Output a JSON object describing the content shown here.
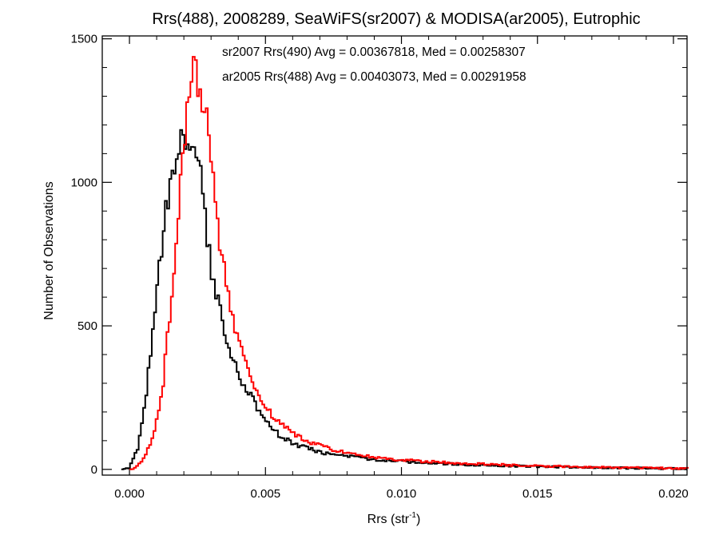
{
  "chart_data": {
    "type": "line",
    "title": "Rrs(488), 2008289, SeaWiFS(sr2007) & MODISA(ar2005), Eutrophic",
    "xlabel": {
      "base": "Rrs (str",
      "sup": "-1",
      "close": ")"
    },
    "ylabel": "Number of Observations",
    "xlim": [
      -0.001,
      0.0205
    ],
    "ylim": [
      -20,
      1510
    ],
    "x_ticks": [
      0.0,
      0.005,
      0.01,
      0.015,
      0.02
    ],
    "x_tick_labels": [
      "0.000",
      "0.005",
      "0.010",
      "0.015",
      "0.020"
    ],
    "y_ticks": [
      0,
      500,
      1000,
      1500
    ],
    "y_tick_labels": [
      "0",
      "500",
      "1000",
      "1500"
    ],
    "step_style": "histogram",
    "series": [
      {
        "name": "sr2007 Rrs(490)",
        "color": "#000000",
        "annotation": "sr2007 Rrs(490) Avg = 0.00367818, Med = 0.00258307",
        "x": [
          -0.0003,
          0.0,
          0.0003,
          0.0006,
          0.0009,
          0.0012,
          0.0015,
          0.0018,
          0.002,
          0.0022,
          0.0024,
          0.0026,
          0.0028,
          0.003,
          0.0033,
          0.0036,
          0.004,
          0.0045,
          0.005,
          0.0055,
          0.006,
          0.0065,
          0.007,
          0.008,
          0.009,
          0.01,
          0.011,
          0.012,
          0.014,
          0.016,
          0.018,
          0.02,
          0.0205
        ],
        "y": [
          0,
          5,
          70,
          250,
          520,
          800,
          1000,
          1120,
          1150,
          1130,
          1100,
          1020,
          870,
          700,
          560,
          430,
          330,
          250,
          170,
          120,
          90,
          75,
          60,
          45,
          35,
          28,
          22,
          18,
          12,
          8,
          5,
          3,
          2
        ]
      },
      {
        "name": "ar2005 Rrs(488)",
        "color": "#ff0000",
        "annotation": "ar2005 Rrs(488) Avg = 0.00403073, Med = 0.00291958",
        "x": [
          0.0,
          0.0003,
          0.0006,
          0.0009,
          0.0012,
          0.0015,
          0.0018,
          0.002,
          0.0022,
          0.0023,
          0.0025,
          0.0027,
          0.0029,
          0.0031,
          0.0033,
          0.0036,
          0.004,
          0.0045,
          0.005,
          0.0055,
          0.006,
          0.0065,
          0.007,
          0.008,
          0.009,
          0.01,
          0.011,
          0.012,
          0.014,
          0.016,
          0.018,
          0.02,
          0.0205
        ],
        "y": [
          0,
          10,
          50,
          120,
          260,
          560,
          900,
          1150,
          1320,
          1400,
          1350,
          1280,
          1160,
          1000,
          820,
          620,
          440,
          310,
          220,
          160,
          125,
          100,
          82,
          55,
          42,
          32,
          27,
          22,
          15,
          10,
          6,
          4,
          3
        ]
      }
    ]
  }
}
